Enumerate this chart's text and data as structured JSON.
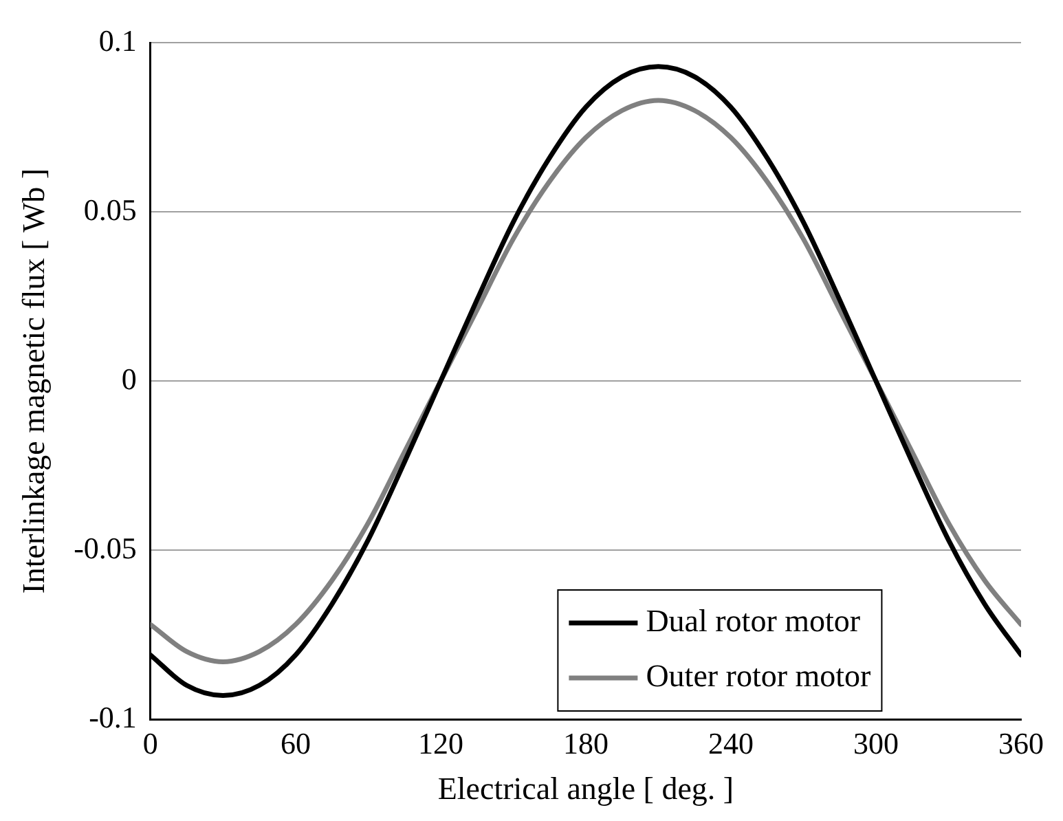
{
  "chart_data": {
    "type": "line",
    "xlabel": "Electrical angle [ deg. ]",
    "ylabel": "Interlinkage magnetic flux [ Wb ]",
    "x": [
      0,
      15,
      30,
      45,
      60,
      75,
      90,
      105,
      120,
      135,
      150,
      165,
      180,
      195,
      210,
      225,
      240,
      255,
      270,
      285,
      300,
      315,
      330,
      345,
      360
    ],
    "series": [
      {
        "name": "Dual rotor motor",
        "color": "#000000",
        "values": [
          -0.081,
          -0.09,
          -0.093,
          -0.09,
          -0.081,
          -0.066,
          -0.047,
          -0.024,
          0,
          0.024,
          0.047,
          0.066,
          0.081,
          0.09,
          0.093,
          0.09,
          0.081,
          0.066,
          0.047,
          0.024,
          0,
          -0.024,
          -0.047,
          -0.066,
          -0.081
        ]
      },
      {
        "name": "Outer rotor motor",
        "color": "#808080",
        "values": [
          -0.072,
          -0.08,
          -0.083,
          -0.08,
          -0.072,
          -0.059,
          -0.042,
          -0.021,
          0,
          0.021,
          0.042,
          0.059,
          0.072,
          0.08,
          0.083,
          0.08,
          0.072,
          0.059,
          0.042,
          0.021,
          0,
          -0.021,
          -0.042,
          -0.059,
          -0.072
        ]
      }
    ],
    "xlim": [
      0,
      360
    ],
    "xticks": [
      0,
      60,
      120,
      180,
      240,
      300,
      360
    ],
    "ylim": [
      -0.1,
      0.1
    ],
    "yticks": [
      -0.1,
      -0.05,
      0,
      0.05,
      0.1
    ],
    "grid": "y",
    "legend": "bottom right",
    "marker": "none",
    "line_style": "solid"
  }
}
